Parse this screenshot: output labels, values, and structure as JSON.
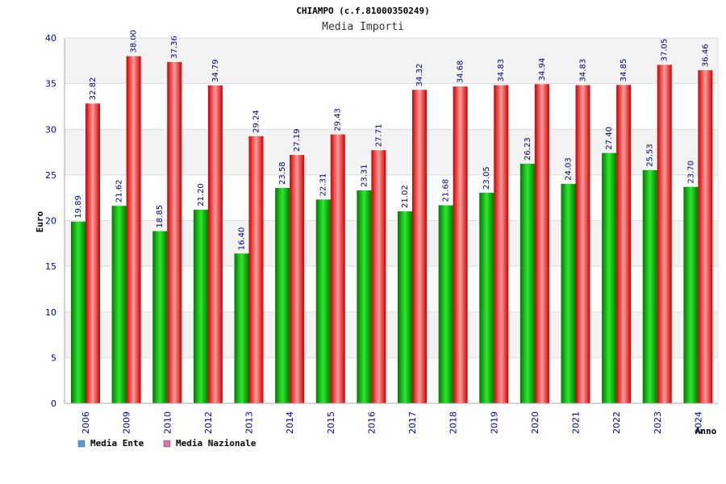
{
  "chart_data": {
    "type": "bar",
    "title": "CHIAMPO (c.f.81000350249)",
    "subtitle": "Media Importi",
    "ylabel": "Euro",
    "xlabel": "Anno",
    "ylim": [
      0,
      40
    ],
    "yticks": [
      0,
      5,
      10,
      15,
      20,
      25,
      30,
      35,
      40
    ],
    "grid": true,
    "legend_position": "bottom-left",
    "categories": [
      "2006",
      "2009",
      "2010",
      "2012",
      "2013",
      "2014",
      "2015",
      "2016",
      "2017",
      "2018",
      "2019",
      "2020",
      "2021",
      "2022",
      "2023",
      "2024"
    ],
    "series": [
      {
        "name": "Media Ente",
        "color": "#00bb00",
        "legend_color": "#5b9bd5",
        "values": [
          19.89,
          21.62,
          18.85,
          21.2,
          16.4,
          23.58,
          22.31,
          23.31,
          21.02,
          21.68,
          23.05,
          26.23,
          24.03,
          27.4,
          25.53,
          23.7
        ],
        "labels": [
          "19.89",
          "21.62",
          "18.85",
          "21.20",
          "16.40",
          "23.58",
          "22.31",
          "23.31",
          "21.02",
          "21.68",
          "23.05",
          "26.23",
          "24.03",
          "27.40",
          "25.53",
          "23.70"
        ]
      },
      {
        "name": "Media Nazionale",
        "color": "#ee0000",
        "legend_color": "#d977a8",
        "values": [
          32.82,
          38.0,
          37.36,
          34.79,
          29.24,
          27.19,
          29.43,
          27.71,
          34.32,
          34.68,
          34.83,
          34.94,
          34.83,
          34.85,
          37.05,
          36.46
        ],
        "labels": [
          "32.82",
          "38.00",
          "37.36",
          "34.79",
          "29.24",
          "27.19",
          "29.43",
          "27.71",
          "34.32",
          "34.68",
          "34.83",
          "34.94",
          "34.83",
          "34.85",
          "37.05",
          "36.46"
        ]
      }
    ]
  }
}
